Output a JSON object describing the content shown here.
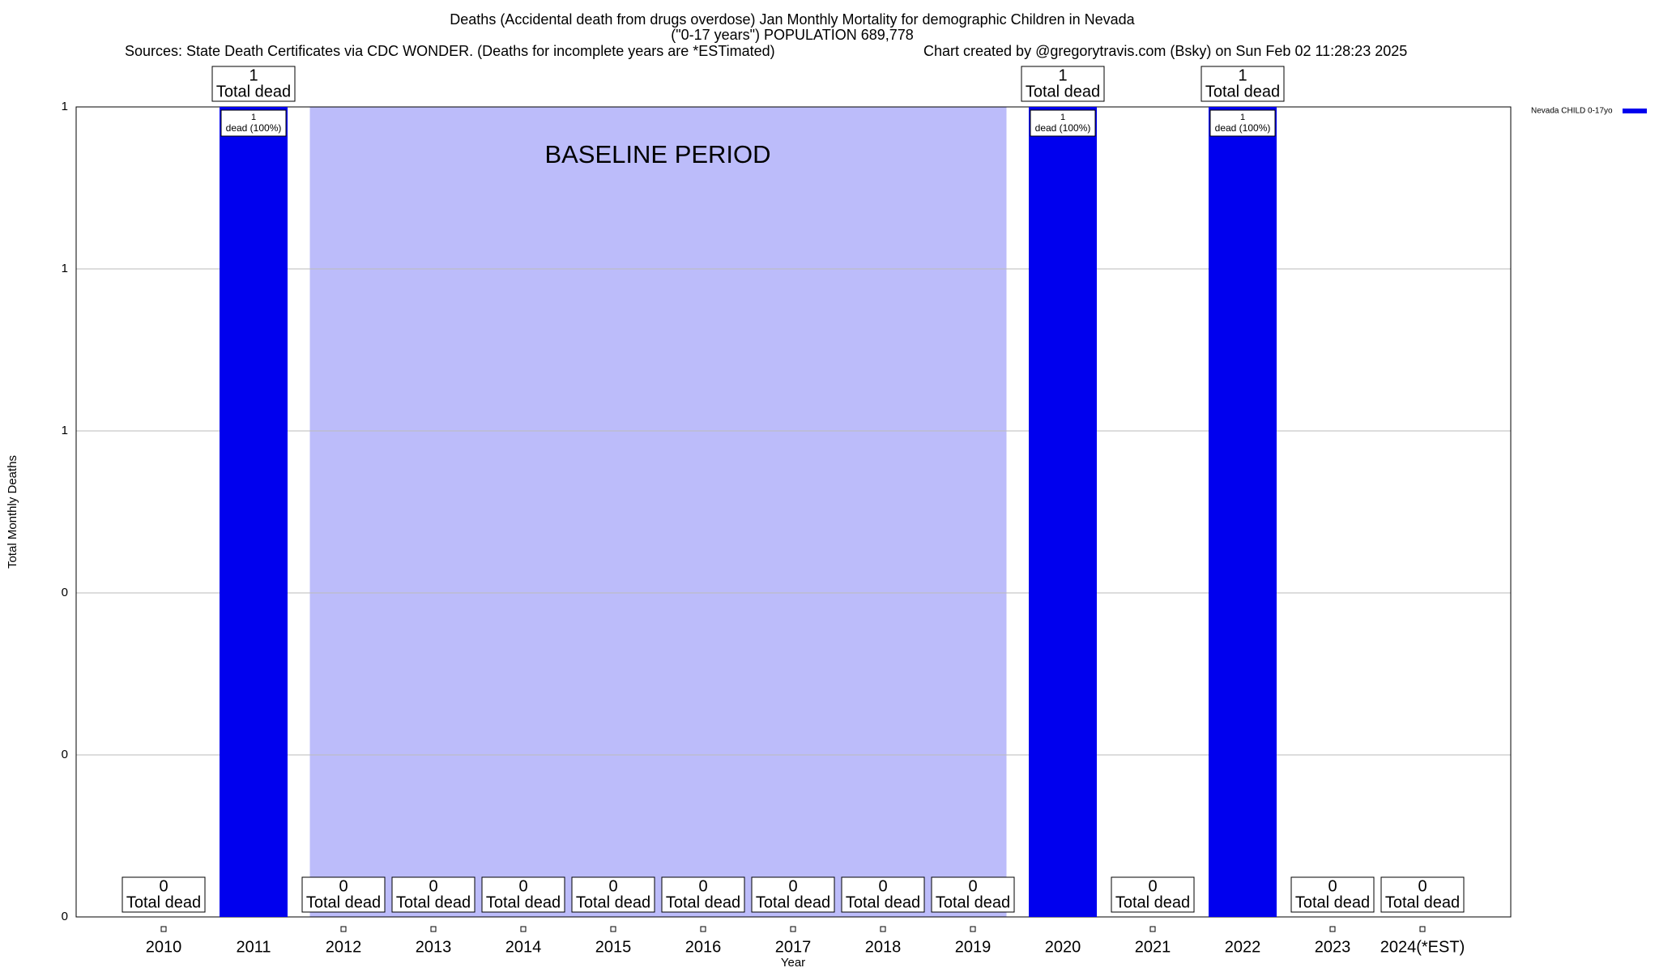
{
  "chart_data": {
    "type": "bar",
    "title": "Deaths (Accidental death from drugs overdose) Jan Monthly Mortality for demographic Children in Nevada",
    "subtitle": "(\"0-17 years\") POPULATION 689,778",
    "source": "Sources: State Death Certificates via CDC WONDER. (Deaths for incomplete years are *ESTimated)",
    "credit": "Chart created by @gregorytravis.com (Bsky) on Sun Feb 02 11:28:23 2025",
    "x_label": "Year",
    "y_label": "Total Monthly Deaths",
    "categories": [
      "2010",
      "2011",
      "2012",
      "2013",
      "2014",
      "2015",
      "2016",
      "2017",
      "2018",
      "2019",
      "2020",
      "2021",
      "2022",
      "2023",
      "2024(*EST)"
    ],
    "series": [
      {
        "name": "Nevada CHILD 0-17yo",
        "color": "#0000ee",
        "values": [
          0,
          1,
          0,
          0,
          0,
          0,
          0,
          0,
          0,
          0,
          1,
          0,
          1,
          0,
          0
        ]
      }
    ],
    "total_label": "Total dead",
    "inner_labels": [
      null,
      "dead (100%)",
      null,
      null,
      null,
      null,
      null,
      null,
      null,
      null,
      "dead (100%)",
      null,
      "dead (100%)",
      null,
      null
    ],
    "baseline": {
      "label": "BASELINE PERIOD",
      "start": "2012",
      "end": "2019",
      "color": "#bcbcfa"
    },
    "ylim": [
      0,
      1
    ],
    "yticks": [
      0,
      {
        "value": 0.2,
        "label": "0"
      },
      {
        "value": 0.4,
        "label": "0"
      },
      {
        "value": 0.6,
        "label": "1"
      },
      {
        "value": 0.8,
        "label": "1"
      },
      1
    ],
    "grid": true,
    "legend": "top-right"
  }
}
